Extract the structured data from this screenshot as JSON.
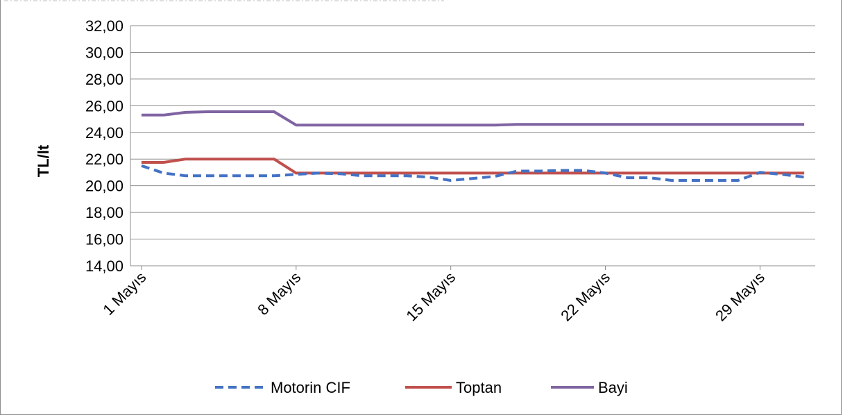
{
  "chart_data": {
    "type": "line",
    "ylabel": "TL/lt",
    "ylim": [
      14,
      32
    ],
    "ytick_step": 2,
    "ytick_labels": [
      "14,00",
      "16,00",
      "18,00",
      "20,00",
      "22,00",
      "24,00",
      "26,00",
      "28,00",
      "30,00",
      "32,00"
    ],
    "x_days": [
      1,
      2,
      3,
      4,
      5,
      6,
      7,
      8,
      9,
      10,
      11,
      12,
      13,
      14,
      15,
      16,
      17,
      18,
      19,
      20,
      21,
      22,
      23,
      24,
      25,
      26,
      27,
      28,
      29,
      30,
      31
    ],
    "xtick_days": [
      1,
      8,
      15,
      22,
      29
    ],
    "xtick_labels": [
      "1 Mayıs",
      "8 Mayıs",
      "15 Mayıs",
      "22 Mayıs",
      "29 Mayıs"
    ],
    "grid": true,
    "legend_position": "bottom",
    "series": [
      {
        "name": "Motorin CIF",
        "color": "#4472C4",
        "dash": true,
        "values": [
          21.5,
          20.95,
          20.75,
          20.75,
          20.75,
          20.75,
          20.75,
          20.85,
          20.95,
          20.9,
          20.75,
          20.75,
          20.75,
          20.65,
          20.4,
          20.55,
          20.7,
          21.1,
          21.1,
          21.15,
          21.15,
          20.95,
          20.6,
          20.6,
          20.4,
          20.4,
          20.4,
          20.4,
          21.0,
          20.85,
          20.65
        ]
      },
      {
        "name": "Toptan",
        "color": "#C0504D",
        "dash": false,
        "values": [
          21.75,
          21.75,
          22.0,
          22.0,
          22.0,
          22.0,
          22.0,
          20.95,
          20.95,
          20.95,
          20.95,
          20.95,
          20.95,
          20.95,
          20.95,
          20.95,
          20.95,
          20.95,
          20.95,
          20.95,
          20.95,
          20.95,
          20.95,
          20.95,
          20.95,
          20.95,
          20.95,
          20.95,
          20.95,
          20.95,
          20.95
        ]
      },
      {
        "name": "Bayi",
        "color": "#8064A2",
        "dash": false,
        "values": [
          25.3,
          25.3,
          25.5,
          25.55,
          25.55,
          25.55,
          25.55,
          24.55,
          24.55,
          24.55,
          24.55,
          24.55,
          24.55,
          24.55,
          24.55,
          24.55,
          24.55,
          24.6,
          24.6,
          24.6,
          24.6,
          24.6,
          24.6,
          24.6,
          24.6,
          24.6,
          24.6,
          24.6,
          24.6,
          24.6,
          24.6
        ]
      }
    ]
  }
}
